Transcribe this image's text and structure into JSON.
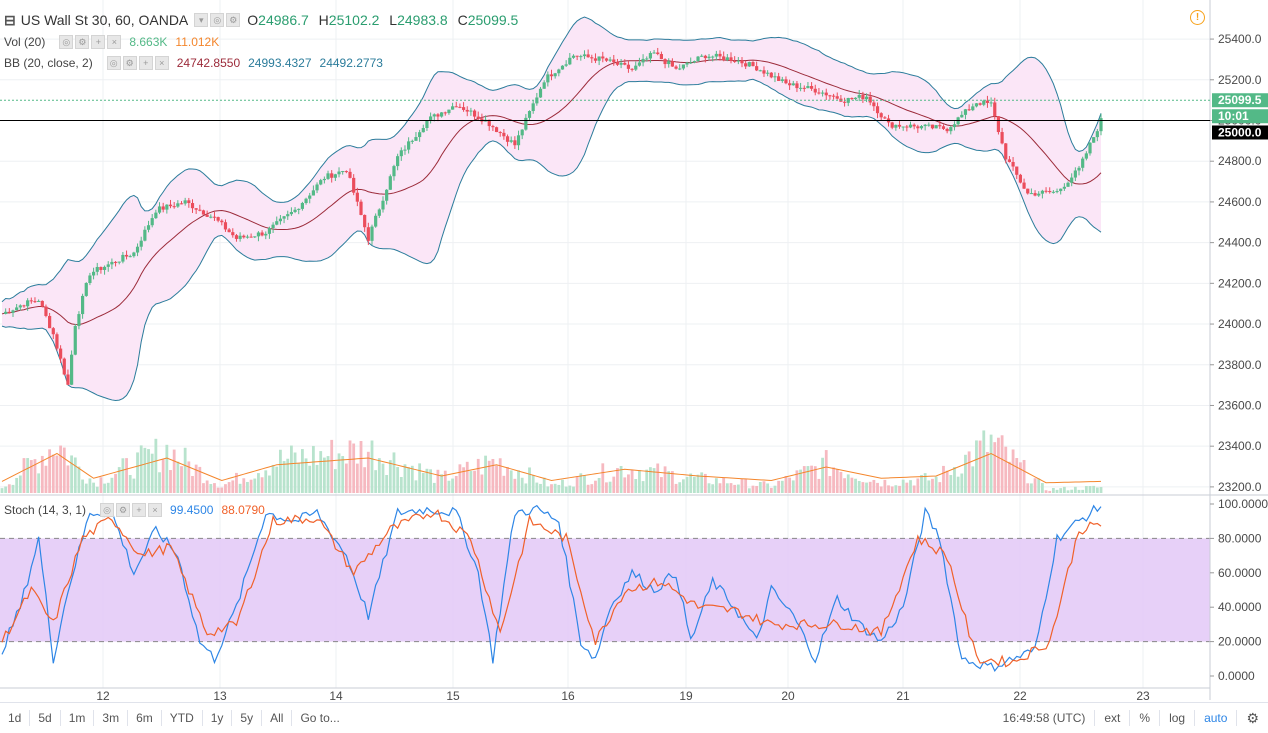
{
  "legend": {
    "symbol_title": "US Wall St 30, 60, OANDA",
    "open_key": "O",
    "open": "24986.7",
    "high_key": "H",
    "high": "25102.2",
    "low_key": "L",
    "low": "24983.8",
    "close_key": "C",
    "close": "25099.5",
    "vol_label": "Vol (20)",
    "vol_value": "8.663K",
    "vol_ma": "11.012K",
    "bb_label": "BB (20, close, 2)",
    "bb_upper": "24742.8550",
    "bb_mid": "24993.4327",
    "bb_lower": "24492.2773",
    "stoch_label": "Stoch (14, 3, 1)",
    "stoch_k": "99.4500",
    "stoch_d": "88.0790"
  },
  "colors": {
    "up": "#53b987",
    "down": "#eb4d5c",
    "bb_band": "#2b7c9b",
    "bb_fill": "#fbe6f7",
    "bb_mid": "#9c2b3a",
    "vol_ma": "#f4862c",
    "stoch_k": "#2e86e6",
    "stoch_d": "#f0612a",
    "stoch_band": "#e3c8f7",
    "last_price_bg": "#53b987",
    "crosshair_bg": "#000000",
    "alert": "#f7a21b"
  },
  "price_axis": {
    "ticks": [
      "25400.0",
      "25200.0",
      "25000.0",
      "24800.0",
      "24600.0",
      "24400.0",
      "24200.0",
      "24000.0",
      "23800.0",
      "23600.0",
      "23400.0",
      "23200.0"
    ]
  },
  "stoch_axis": {
    "ticks": [
      "100.0000",
      "80.0000",
      "60.0000",
      "40.0000",
      "20.0000",
      "0.0000"
    ]
  },
  "time_axis": {
    "labels": [
      "12",
      "13",
      "14",
      "15",
      "16",
      "19",
      "20",
      "21",
      "22",
      "23"
    ]
  },
  "price_labels": {
    "last": "25099.5",
    "countdown": "10:01",
    "crosshair": "25000.0"
  },
  "toolbar": {
    "timeframes": [
      "1d",
      "5d",
      "1m",
      "3m",
      "6m",
      "YTD",
      "1y",
      "5y",
      "All",
      "Go to..."
    ],
    "clock": "16:49:58 (UTC)",
    "options": [
      "ext",
      "%",
      "log",
      "auto"
    ],
    "settings_icon": "gear-icon"
  },
  "chart_data": {
    "type": "candlestick",
    "title": "US Wall St 30, 60, OANDA",
    "interval": "60",
    "ylim_price": [
      23200,
      25500
    ],
    "ylim_stoch": [
      0,
      100
    ],
    "x": [
      "12",
      "13",
      "14",
      "15",
      "16",
      "19",
      "20",
      "21",
      "22",
      "23"
    ],
    "last_bar": {
      "open": 24986.7,
      "high": 25102.2,
      "low": 24983.8,
      "close": 25099.5
    },
    "price_path": [
      [
        0,
        24050
      ],
      [
        6,
        24100
      ],
      [
        10,
        24120
      ],
      [
        14,
        23950
      ],
      [
        18,
        23700
      ],
      [
        20,
        24000
      ],
      [
        24,
        24250
      ],
      [
        30,
        24300
      ],
      [
        36,
        24350
      ],
      [
        42,
        24560
      ],
      [
        50,
        24600
      ],
      [
        58,
        24520
      ],
      [
        64,
        24420
      ],
      [
        72,
        24450
      ],
      [
        80,
        24560
      ],
      [
        88,
        24720
      ],
      [
        94,
        24760
      ],
      [
        100,
        24420
      ],
      [
        108,
        24820
      ],
      [
        116,
        25000
      ],
      [
        124,
        25080
      ],
      [
        132,
        25000
      ],
      [
        140,
        24880
      ],
      [
        148,
        25200
      ],
      [
        156,
        25320
      ],
      [
        164,
        25300
      ],
      [
        172,
        25250
      ],
      [
        178,
        25330
      ],
      [
        184,
        25250
      ],
      [
        192,
        25320
      ],
      [
        200,
        25300
      ],
      [
        206,
        25260
      ],
      [
        214,
        25180
      ],
      [
        222,
        25150
      ],
      [
        230,
        25100
      ],
      [
        236,
        25120
      ],
      [
        242,
        24980
      ],
      [
        250,
        24970
      ],
      [
        258,
        24960
      ],
      [
        266,
        25090
      ],
      [
        270,
        25080
      ],
      [
        274,
        24820
      ],
      [
        280,
        24640
      ],
      [
        288,
        24650
      ],
      [
        294,
        24760
      ],
      [
        300,
        25000
      ]
    ],
    "volume_path": [
      [
        0,
        0.08
      ],
      [
        15,
        0.7
      ],
      [
        25,
        0.15
      ],
      [
        45,
        0.6
      ],
      [
        60,
        0.1
      ],
      [
        75,
        0.45
      ],
      [
        100,
        0.6
      ],
      [
        120,
        0.2
      ],
      [
        135,
        0.45
      ],
      [
        150,
        0.1
      ],
      [
        170,
        0.35
      ],
      [
        190,
        0.2
      ],
      [
        210,
        0.1
      ],
      [
        225,
        0.4
      ],
      [
        240,
        0.15
      ],
      [
        255,
        0.2
      ],
      [
        270,
        0.7
      ],
      [
        285,
        0.05
      ],
      [
        300,
        0.08
      ]
    ],
    "stoch_path": [
      [
        0,
        15
      ],
      [
        5,
        40
      ],
      [
        10,
        80
      ],
      [
        14,
        10
      ],
      [
        18,
        50
      ],
      [
        24,
        95
      ],
      [
        30,
        95
      ],
      [
        36,
        60
      ],
      [
        42,
        85
      ],
      [
        48,
        70
      ],
      [
        54,
        20
      ],
      [
        58,
        10
      ],
      [
        64,
        40
      ],
      [
        72,
        95
      ],
      [
        80,
        90
      ],
      [
        86,
        95
      ],
      [
        94,
        70
      ],
      [
        100,
        35
      ],
      [
        108,
        95
      ],
      [
        116,
        97
      ],
      [
        124,
        95
      ],
      [
        130,
        60
      ],
      [
        134,
        10
      ],
      [
        140,
        95
      ],
      [
        146,
        97
      ],
      [
        152,
        90
      ],
      [
        158,
        20
      ],
      [
        162,
        10
      ],
      [
        166,
        40
      ],
      [
        172,
        60
      ],
      [
        178,
        50
      ],
      [
        184,
        60
      ],
      [
        188,
        20
      ],
      [
        194,
        55
      ],
      [
        200,
        40
      ],
      [
        206,
        20
      ],
      [
        210,
        50
      ],
      [
        216,
        35
      ],
      [
        222,
        10
      ],
      [
        228,
        45
      ],
      [
        234,
        30
      ],
      [
        240,
        20
      ],
      [
        246,
        40
      ],
      [
        252,
        95
      ],
      [
        256,
        80
      ],
      [
        262,
        10
      ],
      [
        270,
        5
      ],
      [
        276,
        10
      ],
      [
        282,
        15
      ],
      [
        288,
        80
      ],
      [
        294,
        90
      ],
      [
        300,
        99
      ]
    ],
    "stoch_d_path": [
      [
        0,
        20
      ],
      [
        8,
        50
      ],
      [
        14,
        30
      ],
      [
        22,
        80
      ],
      [
        30,
        92
      ],
      [
        38,
        70
      ],
      [
        46,
        75
      ],
      [
        56,
        25
      ],
      [
        64,
        30
      ],
      [
        74,
        90
      ],
      [
        86,
        92
      ],
      [
        96,
        60
      ],
      [
        106,
        85
      ],
      [
        118,
        96
      ],
      [
        128,
        80
      ],
      [
        136,
        25
      ],
      [
        144,
        90
      ],
      [
        154,
        80
      ],
      [
        162,
        20
      ],
      [
        170,
        50
      ],
      [
        180,
        55
      ],
      [
        190,
        40
      ],
      [
        200,
        38
      ],
      [
        210,
        30
      ],
      [
        220,
        30
      ],
      [
        230,
        30
      ],
      [
        240,
        25
      ],
      [
        250,
        80
      ],
      [
        258,
        70
      ],
      [
        266,
        10
      ],
      [
        276,
        8
      ],
      [
        286,
        20
      ],
      [
        294,
        85
      ],
      [
        300,
        88
      ]
    ]
  }
}
